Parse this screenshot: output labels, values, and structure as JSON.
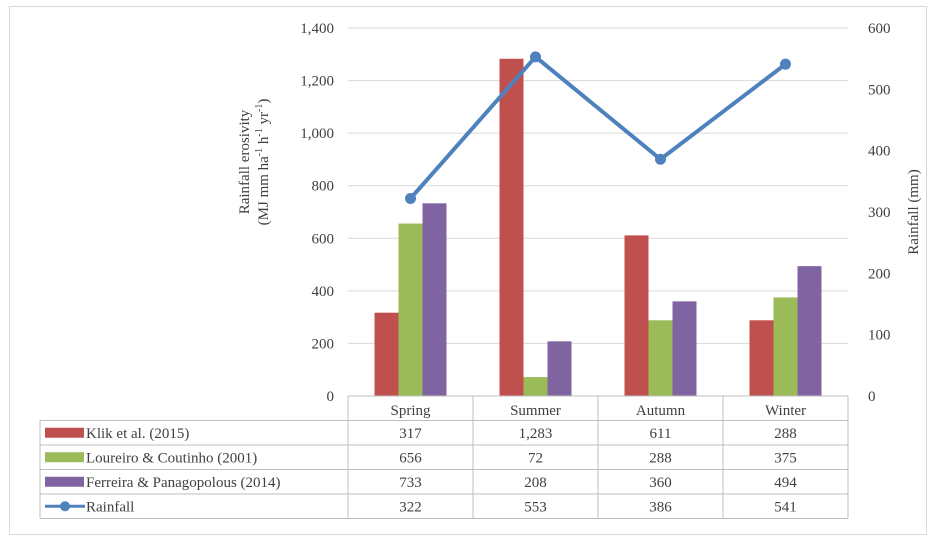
{
  "chart_data": {
    "type": "bar",
    "categories": [
      "Spring",
      "Summer",
      "Autumn",
      "Winter"
    ],
    "series": [
      {
        "name": "Klik et al. (2015)",
        "kind": "bar",
        "axis": "left",
        "color": "#c0504d",
        "values": [
          317,
          1283,
          611,
          288
        ],
        "labels": [
          "317",
          "1,283",
          "611",
          "288"
        ]
      },
      {
        "name": "Loureiro & Coutinho (2001)",
        "kind": "bar",
        "axis": "left",
        "color": "#9bbb59",
        "values": [
          656,
          72,
          288,
          375
        ],
        "labels": [
          "656",
          "72",
          "288",
          "375"
        ]
      },
      {
        "name": "Ferreira & Panagopolous (2014)",
        "kind": "bar",
        "axis": "left",
        "color": "#8064a2",
        "values": [
          733,
          208,
          360,
          494
        ],
        "labels": [
          "733",
          "208",
          "360",
          "494"
        ]
      },
      {
        "name": "Rainfall",
        "kind": "line",
        "axis": "right",
        "color": "#4f81bd",
        "values": [
          322,
          553,
          386,
          541
        ],
        "labels": [
          "322",
          "553",
          "386",
          "541"
        ]
      }
    ],
    "y_left": {
      "label_line1": "Rainfall erosivity",
      "label_line2": "(MJ mm ha",
      "label_parts": [
        "(MJ mm ha",
        "-1",
        " h",
        "-1",
        " yr",
        "-1",
        ")"
      ],
      "ylim": [
        0,
        1400
      ],
      "ticks": [
        "0",
        "200",
        "400",
        "600",
        "800",
        "1,000",
        "1,200",
        "1,400"
      ]
    },
    "y_right": {
      "label": "Rainfall (mm)",
      "ylim": [
        0,
        600
      ],
      "ticks": [
        "0",
        "100",
        "200",
        "300",
        "400",
        "500",
        "600"
      ]
    },
    "grid": true,
    "legend": "data-table"
  }
}
